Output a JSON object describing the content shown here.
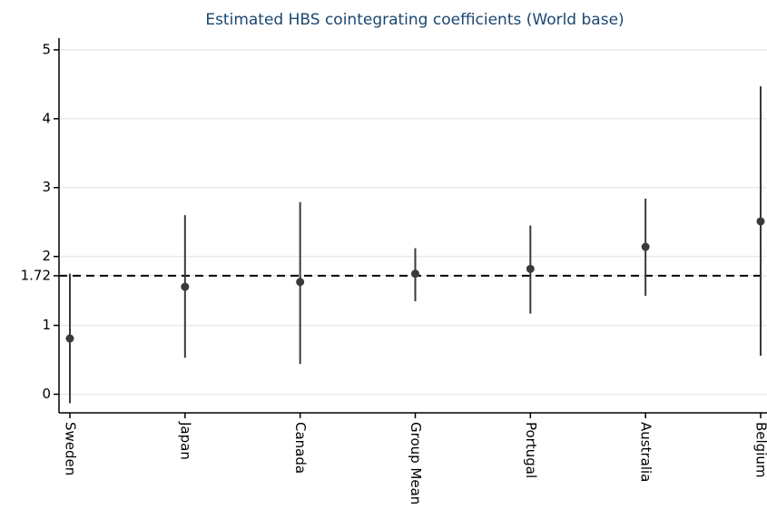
{
  "chart_data": {
    "type": "errorbar",
    "title": "Estimated HBS cointegrating coefficients (World base)",
    "categories": [
      "Sweden",
      "Japan",
      "Canada",
      "Group Mean",
      "Portugal",
      "Australia",
      "Belgium"
    ],
    "values": [
      0.81,
      1.56,
      1.63,
      1.75,
      1.82,
      2.14,
      2.51
    ],
    "lower": [
      -0.13,
      0.53,
      0.44,
      1.35,
      1.17,
      1.43,
      0.56
    ],
    "upper": [
      1.75,
      2.6,
      2.79,
      2.12,
      2.45,
      2.84,
      4.47
    ],
    "color": "#3a3a3a",
    "reference_line": 1.72,
    "ylim": [
      -0.27,
      5.17
    ],
    "yticks": [
      0,
      1,
      1.72,
      2,
      3,
      4,
      5
    ],
    "grid": true
  }
}
